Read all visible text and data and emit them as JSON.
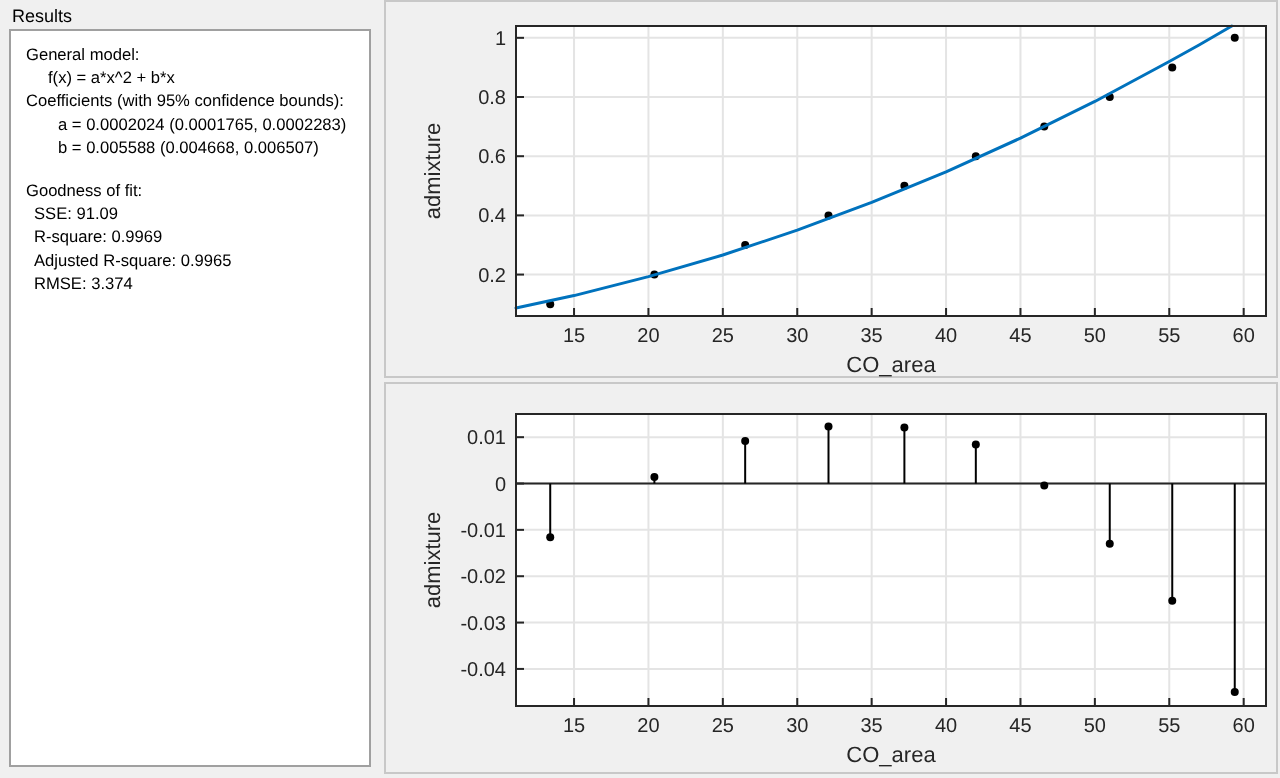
{
  "chart_data": [
    {
      "type": "other",
      "title": "Results",
      "annotations": [
        "General model:",
        "f(x) = a*x^2 + b*x",
        "Coefficients (with 95% confidence bounds):",
        "a = 0.0002024 (0.0001765, 0.0002283)",
        "b = 0.005588 (0.004668, 0.006507)",
        "Goodness of fit:",
        "SSE: 91.09",
        "R-square: 0.9969",
        "Adjusted R-square: 0.9965",
        "RMSE: 3.374"
      ]
    },
    {
      "type": "scatter",
      "xlabel": "CO_area",
      "ylabel": "admixture",
      "xlim": [
        11.1,
        61.5
      ],
      "ylim": [
        0.06,
        1.04
      ],
      "xticks": [
        15,
        20,
        25,
        30,
        35,
        40,
        45,
        50,
        55,
        60
      ],
      "yticks": [
        0.2,
        0.4,
        0.6,
        0.8,
        1
      ],
      "grid": true,
      "series": [
        {
          "marker": "circle",
          "color": "#000000",
          "x": [
            13.4,
            20.4,
            26.5,
            32.1,
            37.2,
            42.0,
            46.6,
            51.0,
            55.2,
            59.4
          ],
          "values": [
            0.1,
            0.2,
            0.3,
            0.4,
            0.5,
            0.6,
            0.7,
            0.8,
            0.9,
            1.0
          ]
        },
        {
          "type": "line",
          "marker": "none",
          "color": "#0072bd",
          "x": [
            11.1,
            15,
            20,
            25,
            30,
            35,
            40,
            45,
            50,
            55,
            57,
            59.2
          ],
          "values": [
            0.087,
            0.129,
            0.193,
            0.266,
            0.35,
            0.444,
            0.547,
            0.661,
            0.785,
            0.92,
            0.976,
            1.04
          ]
        }
      ]
    },
    {
      "type": "lollipop",
      "xlabel": "CO_area",
      "ylabel": "admixture",
      "xlim": [
        11.1,
        61.5
      ],
      "ylim": [
        -0.048,
        0.015
      ],
      "xticks": [
        15,
        20,
        25,
        30,
        35,
        40,
        45,
        50,
        55,
        60
      ],
      "yticks": [
        -0.04,
        -0.03,
        -0.02,
        -0.01,
        0,
        0.01
      ],
      "grid": true,
      "marker": "circle",
      "series": [
        {
          "color": "#000000",
          "x": [
            13.4,
            20.4,
            26.5,
            32.1,
            37.2,
            42.0,
            46.6,
            51.0,
            55.2,
            59.4
          ],
          "values": [
            -0.0116,
            0.0014,
            0.0092,
            0.0123,
            0.0121,
            0.0084,
            -0.0004,
            -0.013,
            -0.0253,
            -0.045
          ]
        }
      ]
    }
  ]
}
